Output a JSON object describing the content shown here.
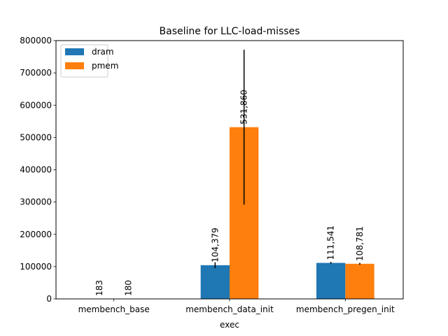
{
  "chart_data": {
    "type": "bar",
    "title": "Baseline for LLC-load-misses",
    "xlabel": "exec",
    "ylabel": "",
    "categories": [
      "membench_base",
      "membench_data_init",
      "membench_pregen_init"
    ],
    "series": [
      {
        "name": "dram",
        "color": "#1f77b4",
        "values": [
          183,
          104379,
          111541
        ],
        "labels": [
          "183",
          "104,379",
          "111,541"
        ],
        "error": [
          0,
          9000,
          3000
        ]
      },
      {
        "name": "pmem",
        "color": "#ff7f0e",
        "values": [
          180,
          531860,
          108781
        ],
        "labels": [
          "180",
          "531,860",
          "108,781"
        ],
        "error": [
          0,
          240000,
          3000
        ]
      }
    ],
    "ylim": [
      0,
      800000
    ],
    "yticks": [
      0,
      100000,
      200000,
      300000,
      400000,
      500000,
      600000,
      700000,
      800000
    ],
    "ytick_labels": [
      "0",
      "100000",
      "200000",
      "300000",
      "400000",
      "500000",
      "600000",
      "700000",
      "800000"
    ],
    "legend_position": "top-left",
    "grid": false
  }
}
